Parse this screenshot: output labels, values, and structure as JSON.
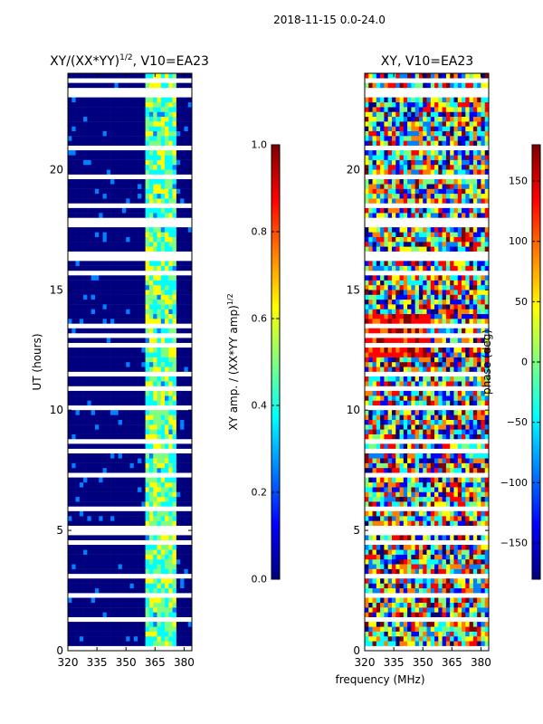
{
  "suptitle": "2018-11-15 0.0-24.0",
  "chart_data": [
    {
      "type": "heatmap",
      "title": "XY/(XX*YY)^1/2, V10=EA23",
      "title_main": "XY/(XX*YY)",
      "title_exp": "1/2",
      "title_tail": ", V10=EA23",
      "xlabel": "",
      "ylabel": "UT (hours)",
      "xlim": [
        320,
        384
      ],
      "ylim": [
        0,
        24
      ],
      "xticks": [
        320,
        335,
        350,
        365,
        380
      ],
      "yticks": [
        0,
        5,
        10,
        15,
        20
      ],
      "bright_band_mhz": [
        361,
        376
      ],
      "colorbar": {
        "label": "XY amp. / (XX*YY amp)^1/2",
        "label_main": "XY amp. / (XX*YY amp)",
        "label_exp": "1/2",
        "range": [
          0.0,
          1.0
        ],
        "ticks": [
          "0.0",
          "0.2",
          "0.4",
          "0.6",
          "0.8",
          "1.0"
        ],
        "tick_values": [
          0.0,
          0.2,
          0.4,
          0.6,
          0.8,
          1.0
        ]
      }
    },
    {
      "type": "heatmap",
      "title": "XY, V10=EA23",
      "xlabel": "frequency (MHz)",
      "ylabel": "",
      "xlim": [
        320,
        384
      ],
      "ylim": [
        0,
        24
      ],
      "xticks": [
        320,
        335,
        350,
        365,
        380
      ],
      "yticks": [
        0,
        5,
        10,
        15,
        20
      ],
      "colorbar": {
        "label": "phase (deg)",
        "range": [
          -180,
          180
        ],
        "ticks": [
          "−150",
          "−100",
          "−50",
          "0",
          "50",
          "100",
          "150"
        ],
        "tick_values": [
          -150,
          -100,
          -50,
          0,
          50,
          100,
          150
        ]
      }
    }
  ],
  "colors": {
    "jet_stops": [
      "#00007f",
      "#0000ff",
      "#007fff",
      "#00ffff",
      "#7fff7f",
      "#ffff00",
      "#ff7f00",
      "#ff0000",
      "#7f0000"
    ]
  }
}
